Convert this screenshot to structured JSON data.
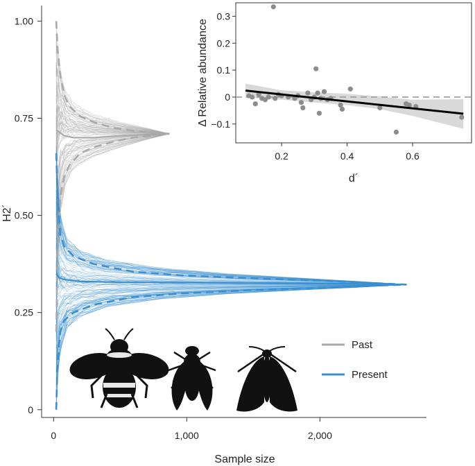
{
  "colors": {
    "past": "#a9a9a9",
    "present": "#3a8fd1",
    "regression": "#000000",
    "band": "#cfcfcf",
    "inset_points": "#8c8c8c",
    "axis": "#333333"
  },
  "chart_data": [
    {
      "type": "line",
      "xlabel": "Sample size",
      "ylabel": "H2´",
      "xlim": [
        -90,
        2800
      ],
      "ylim": [
        -0.02,
        1.04
      ],
      "x_ticks": [
        0,
        1000,
        2000
      ],
      "x_tick_labels": [
        "0",
        "1,000",
        "2,000"
      ],
      "y_ticks": [
        0,
        0.25,
        0.5,
        0.75,
        1.0
      ],
      "y_tick_labels": [
        "0",
        "0.25",
        "0.50",
        "0.75",
        "1.00"
      ],
      "series": [
        {
          "name": "Past",
          "color_key": "past",
          "max_sample_size": 870,
          "mean": {
            "x": [
              20,
              40,
              80,
              150,
              300,
              500,
              700,
              870
            ],
            "y": [
              0.72,
              0.715,
              0.705,
              0.7,
              0.7,
              0.705,
              0.708,
              0.71
            ]
          },
          "upper_interval": {
            "x": [
              20,
              30,
              50,
              80,
              120,
              200,
              300,
              450,
              600,
              750,
              870
            ],
            "y": [
              1.0,
              0.93,
              0.86,
              0.81,
              0.78,
              0.755,
              0.74,
              0.725,
              0.718,
              0.713,
              0.71
            ]
          },
          "lower_interval": {
            "x": [
              20,
              30,
              50,
              80,
              120,
              200,
              300,
              450,
              600,
              750,
              870
            ],
            "y": [
              0.2,
              0.4,
              0.55,
              0.6,
              0.63,
              0.66,
              0.675,
              0.69,
              0.7,
              0.706,
              0.71
            ]
          },
          "envelope_upper": {
            "x": [
              20,
              30,
              50,
              90,
              150,
              300,
              500,
              700,
              870
            ],
            "y": [
              1.0,
              0.95,
              0.88,
              0.82,
              0.79,
              0.76,
              0.74,
              0.725,
              0.71
            ]
          },
          "envelope_lower": {
            "x": [
              20,
              30,
              50,
              90,
              150,
              300,
              500,
              700,
              870
            ],
            "y": [
              0.18,
              0.36,
              0.5,
              0.58,
              0.62,
              0.65,
              0.675,
              0.695,
              0.71
            ]
          }
        },
        {
          "name": "Present",
          "color_key": "present",
          "max_sample_size": 2650,
          "mean": {
            "x": [
              20,
              40,
              80,
              200,
              500,
              1000,
              1500,
              2000,
              2650
            ],
            "y": [
              0.35,
              0.34,
              0.335,
              0.33,
              0.328,
              0.327,
              0.326,
              0.325,
              0.322
            ]
          },
          "upper_interval": {
            "x": [
              20,
              30,
              50,
              80,
              150,
              300,
              600,
              1000,
              1500,
              2000,
              2650
            ],
            "y": [
              0.66,
              0.55,
              0.45,
              0.42,
              0.395,
              0.375,
              0.355,
              0.345,
              0.338,
              0.332,
              0.322
            ]
          },
          "lower_interval": {
            "x": [
              20,
              30,
              50,
              80,
              150,
              300,
              600,
              1000,
              1500,
              2000,
              2650
            ],
            "y": [
              0.0,
              0.12,
              0.2,
              0.23,
              0.25,
              0.27,
              0.29,
              0.3,
              0.308,
              0.314,
              0.322
            ]
          },
          "envelope_upper": {
            "x": [
              20,
              30,
              50,
              100,
              200,
              400,
              800,
              1300,
              1800,
              2300,
              2650
            ],
            "y": [
              0.68,
              0.6,
              0.5,
              0.44,
              0.41,
              0.385,
              0.365,
              0.35,
              0.34,
              0.33,
              0.322
            ]
          },
          "envelope_lower": {
            "x": [
              20,
              30,
              50,
              100,
              200,
              400,
              800,
              1300,
              1800,
              2300,
              2650
            ],
            "y": [
              0.0,
              0.08,
              0.15,
              0.21,
              0.24,
              0.265,
              0.285,
              0.298,
              0.307,
              0.315,
              0.322
            ]
          }
        }
      ],
      "legend": {
        "placement": "bottom-right",
        "entries": [
          "Past",
          "Present"
        ]
      },
      "silhouettes": [
        "bumblebee-icon",
        "fly-icon",
        "moth-icon"
      ]
    },
    {
      "type": "scatter",
      "placement": "inset-top-right",
      "xlabel": "d´",
      "ylabel": "Δ Relative abundance",
      "xlim": [
        0.06,
        0.78
      ],
      "ylim": [
        -0.17,
        0.35
      ],
      "x_ticks": [
        0.2,
        0.4,
        0.6
      ],
      "x_tick_labels": [
        "0.2",
        "0.4",
        "0.6"
      ],
      "y_ticks": [
        -0.1,
        0,
        0.1,
        0.2,
        0.3
      ],
      "y_tick_labels": [
        "−0.1",
        "0",
        "0.1",
        "0.2",
        "0.3"
      ],
      "reference_line_y": 0,
      "points": [
        {
          "x": 0.1,
          "y": 0.005
        },
        {
          "x": 0.11,
          "y": 0.0
        },
        {
          "x": 0.12,
          "y": -0.025
        },
        {
          "x": 0.13,
          "y": 0.01
        },
        {
          "x": 0.14,
          "y": -0.005
        },
        {
          "x": 0.15,
          "y": -0.01
        },
        {
          "x": 0.16,
          "y": 0.0
        },
        {
          "x": 0.175,
          "y": 0.335
        },
        {
          "x": 0.18,
          "y": -0.005
        },
        {
          "x": 0.19,
          "y": 0.01
        },
        {
          "x": 0.2,
          "y": 0.005
        },
        {
          "x": 0.22,
          "y": 0.0
        },
        {
          "x": 0.24,
          "y": -0.005
        },
        {
          "x": 0.25,
          "y": 0.005
        },
        {
          "x": 0.26,
          "y": -0.02
        },
        {
          "x": 0.265,
          "y": -0.04
        },
        {
          "x": 0.28,
          "y": 0.015
        },
        {
          "x": 0.29,
          "y": -0.01
        },
        {
          "x": 0.3,
          "y": 0.0
        },
        {
          "x": 0.305,
          "y": 0.105
        },
        {
          "x": 0.31,
          "y": 0.015
        },
        {
          "x": 0.315,
          "y": -0.06
        },
        {
          "x": 0.32,
          "y": -0.005
        },
        {
          "x": 0.33,
          "y": 0.02
        },
        {
          "x": 0.34,
          "y": -0.01
        },
        {
          "x": 0.35,
          "y": -0.005
        },
        {
          "x": 0.38,
          "y": -0.03
        },
        {
          "x": 0.385,
          "y": -0.045
        },
        {
          "x": 0.41,
          "y": 0.03
        },
        {
          "x": 0.5,
          "y": -0.04
        },
        {
          "x": 0.55,
          "y": -0.13
        },
        {
          "x": 0.58,
          "y": -0.025
        },
        {
          "x": 0.59,
          "y": -0.03
        },
        {
          "x": 0.61,
          "y": -0.035
        },
        {
          "x": 0.75,
          "y": -0.075
        }
      ],
      "fit": {
        "x": [
          0.09,
          0.755
        ],
        "y": [
          0.024,
          -0.062
        ]
      },
      "confidence_band": {
        "x": [
          0.09,
          0.2,
          0.3,
          0.4,
          0.5,
          0.6,
          0.755
        ],
        "upper": [
          0.05,
          0.025,
          0.018,
          0.012,
          0.002,
          -0.01,
          -0.008
        ],
        "lower": [
          -0.002,
          -0.01,
          -0.02,
          -0.03,
          -0.045,
          -0.07,
          -0.118
        ]
      },
      "grid": false
    }
  ]
}
